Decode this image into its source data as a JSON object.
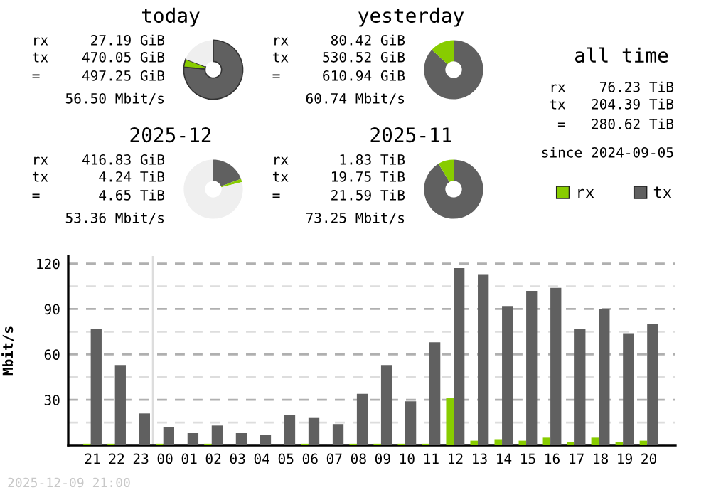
{
  "chart_data": [
    {
      "type": "donut",
      "title": "today",
      "categories": [
        "tx",
        "rx",
        null
      ],
      "values": [
        76.4,
        4.4,
        19.2
      ],
      "colors": [
        "#606060",
        "#88cc00",
        "#efefef"
      ],
      "legend": "right",
      "annotations": [
        "rx     27.19 GiB",
        "tx    470.05 GiB",
        "=     497.25 GiB",
        "56.50 Mbit/s"
      ]
    },
    {
      "type": "donut",
      "title": "yesterday",
      "categories": [
        null,
        null
      ],
      "values": [
        86.8,
        13.2
      ],
      "colors": [
        "#606060",
        "#88cc00"
      ],
      "annotations": [
        "rx     80.42 GiB",
        "tx    530.52 GiB",
        "=     610.94 GiB",
        "60.74 Mbit/s"
      ]
    },
    {
      "type": "donut",
      "title": "2025-12",
      "categories": [
        null,
        null,
        null
      ],
      "values": [
        19.3,
        1.8,
        78.9
      ],
      "colors": [
        "#606060",
        "#88cc00",
        "#efefef"
      ],
      "annotations": [
        "rx    416.83 GiB",
        "tx      4.24 TiB",
        "=       4.65 TiB",
        "53.36 Mbit/s"
      ]
    },
    {
      "type": "donut",
      "title": "2025-11",
      "categories": [
        null,
        null
      ],
      "values": [
        91.5,
        8.5
      ],
      "colors": [
        "#606060",
        "#88cc00"
      ],
      "annotations": [
        "rx      1.83 TiB",
        "tx     19.75 TiB",
        "=      21.59 TiB",
        "73.25 Mbit/s"
      ]
    },
    {
      "type": "other",
      "title": "all time",
      "annotations": [
        "rx    76.23 TiB",
        "tx   204.39 TiB",
        "=   280.62 TiB",
        "since 2024-09-05"
      ]
    },
    {
      "type": "bar",
      "ylabel": "Mbit/s",
      "categories": [
        "21",
        "22",
        "23",
        "00",
        "01",
        "02",
        "03",
        "04",
        "05",
        "06",
        "07",
        "08",
        "09",
        "10",
        "11",
        "12",
        "13",
        "14",
        "15",
        "16",
        "17",
        "18",
        "19",
        "20"
      ],
      "series": [
        {
          "color": "#88cc00",
          "values": [
            1,
            1,
            0,
            1,
            0,
            1,
            0,
            0,
            0,
            1,
            0,
            1,
            1,
            1,
            1,
            31,
            3,
            4,
            3,
            5,
            2,
            5,
            2,
            3
          ]
        },
        {
          "color": "#606060",
          "values": [
            77,
            53,
            21,
            12,
            8,
            13,
            8,
            7,
            20,
            18,
            14,
            34,
            53,
            29,
            68,
            117,
            113,
            92,
            102,
            104,
            77,
            90,
            74,
            80
          ]
        }
      ],
      "ylim": [
        0,
        125
      ],
      "yticks": [
        {
          "value": 0,
          "label": null
        },
        {
          "value": 15,
          "label": null
        },
        30,
        {
          "value": 45,
          "label": null
        },
        60,
        {
          "value": 75,
          "label": null
        },
        90,
        {
          "value": 105,
          "label": null
        },
        120
      ],
      "grid": "y",
      "ref_lines": [
        {
          "axis": "x",
          "value": "00",
          "color": "#dddddd"
        }
      ],
      "annotations": [
        "2025-12-09 21:00"
      ]
    }
  ]
}
